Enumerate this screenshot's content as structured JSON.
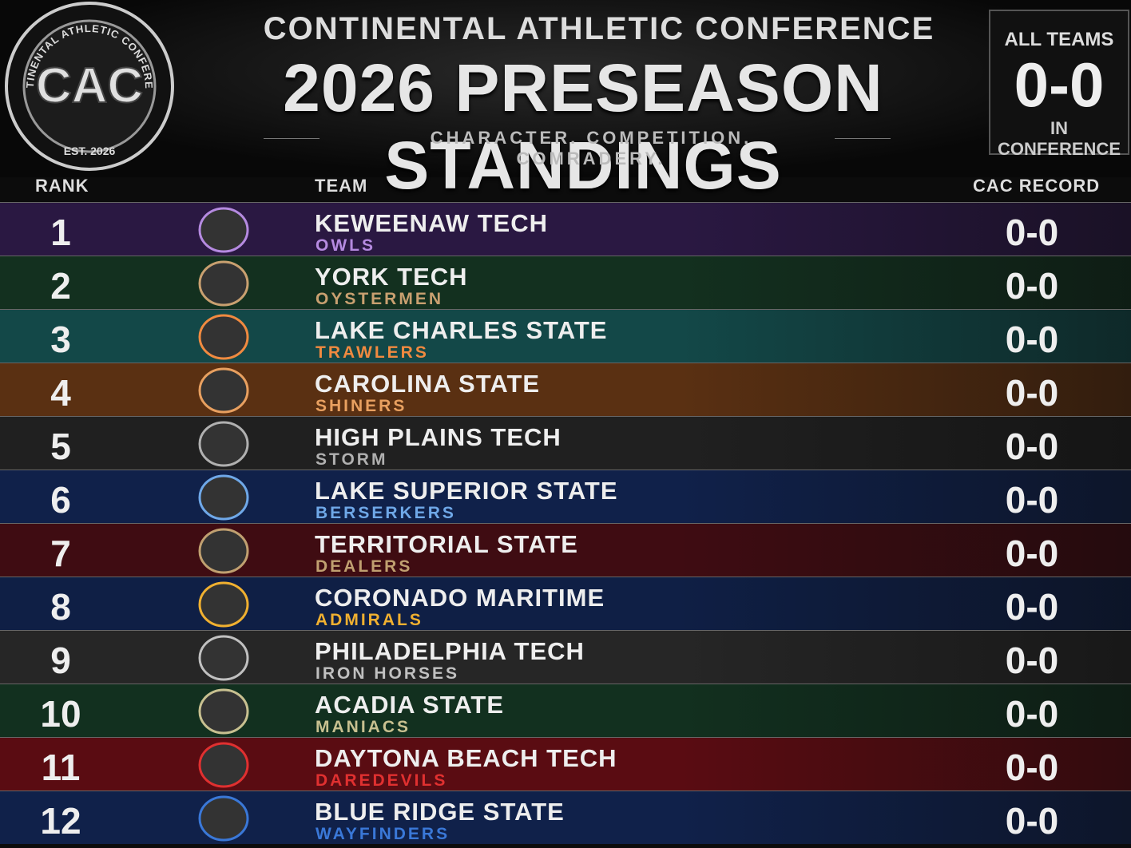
{
  "logo": {
    "ring_text": "CONTINENTAL ATHLETIC CONFERENCE",
    "initials": "CAC",
    "established": "EST. 2026"
  },
  "header": {
    "conference": "CONTINENTAL ATHLETIC CONFERENCE",
    "title": "2026 PRESEASON STANDINGS",
    "tagline": "CHARACTER. COMPETITION. COMRADERY."
  },
  "summary": {
    "label": "ALL TEAMS",
    "record": "0-0",
    "note": "IN CONFERENCE"
  },
  "columns": {
    "rank": "RANK",
    "team": "TEAM",
    "record": "CAC RECORD"
  },
  "rows": [
    {
      "rank": 1,
      "team": "KEWEENAW TECH",
      "nickname": "OWLS",
      "record": "0-0",
      "color": "#2a1842",
      "accent": "#b58ae0"
    },
    {
      "rank": 2,
      "team": "YORK TECH",
      "nickname": "OYSTERMEN",
      "record": "0-0",
      "color": "#13301f",
      "accent": "#c9a070"
    },
    {
      "rank": 3,
      "team": "LAKE CHARLES STATE",
      "nickname": "TRAWLERS",
      "record": "0-0",
      "color": "#134848",
      "accent": "#f08a40"
    },
    {
      "rank": 4,
      "team": "CAROLINA STATE",
      "nickname": "SHINERS",
      "record": "0-0",
      "color": "#5a3012",
      "accent": "#e8a060"
    },
    {
      "rank": 5,
      "team": "HIGH PLAINS TECH",
      "nickname": "STORM",
      "record": "0-0",
      "color": "#202020",
      "accent": "#b0b0b0"
    },
    {
      "rank": 6,
      "team": "LAKE SUPERIOR STATE",
      "nickname": "BERSERKERS",
      "record": "0-0",
      "color": "#10214a",
      "accent": "#6fa8e8"
    },
    {
      "rank": 7,
      "team": "TERRITORIAL STATE",
      "nickname": "DEALERS",
      "record": "0-0",
      "color": "#3f0c12",
      "accent": "#c0a070"
    },
    {
      "rank": 8,
      "team": "CORONADO MARITIME",
      "nickname": "ADMIRALS",
      "record": "0-0",
      "color": "#0f1f45",
      "accent": "#f0b030"
    },
    {
      "rank": 9,
      "team": "PHILADELPHIA TECH",
      "nickname": "IRON HORSES",
      "record": "0-0",
      "color": "#262626",
      "accent": "#c0c0c0"
    },
    {
      "rank": 10,
      "team": "ACADIA STATE",
      "nickname": "MANIACS",
      "record": "0-0",
      "color": "#12301f",
      "accent": "#c8c090"
    },
    {
      "rank": 11,
      "team": "DAYTONA BEACH TECH",
      "nickname": "DAREDEVILS",
      "record": "0-0",
      "color": "#5a0c12",
      "accent": "#e03030"
    },
    {
      "rank": 12,
      "team": "BLUE RIDGE STATE",
      "nickname": "WAYFINDERS",
      "record": "0-0",
      "color": "#10214a",
      "accent": "#3a78d8"
    }
  ]
}
